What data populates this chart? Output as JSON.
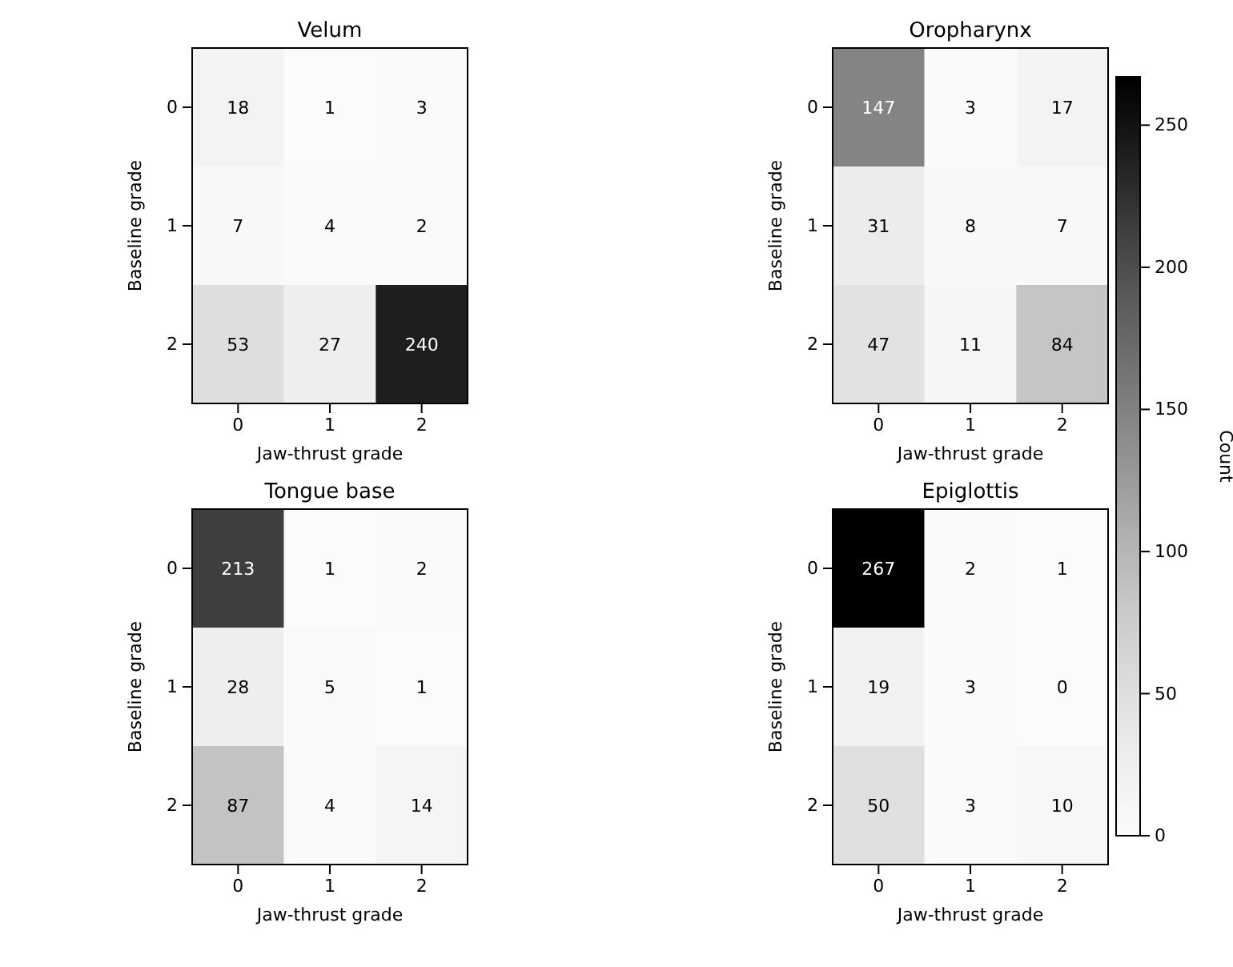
{
  "chart_data": [
    {
      "type": "heatmap",
      "title": "Velum",
      "xlabel": "Jaw-thrust grade",
      "ylabel": "Baseline grade",
      "categories": [
        "0",
        "1",
        "2"
      ],
      "y_categories": [
        "0",
        "1",
        "2"
      ],
      "data_labels": true,
      "cells": [
        [
          18,
          1,
          3
        ],
        [
          7,
          4,
          2
        ],
        [
          53,
          27,
          240
        ]
      ]
    },
    {
      "type": "heatmap",
      "title": "Oropharynx",
      "xlabel": "Jaw-thrust grade",
      "ylabel": "Baseline grade",
      "categories": [
        "0",
        "1",
        "2"
      ],
      "y_categories": [
        "0",
        "1",
        "2"
      ],
      "data_labels": true,
      "cells": [
        [
          147,
          3,
          17
        ],
        [
          31,
          8,
          7
        ],
        [
          47,
          11,
          84
        ]
      ]
    },
    {
      "type": "heatmap",
      "title": "Tongue base",
      "xlabel": "Jaw-thrust grade",
      "ylabel": "Baseline grade",
      "categories": [
        "0",
        "1",
        "2"
      ],
      "y_categories": [
        "0",
        "1",
        "2"
      ],
      "data_labels": true,
      "cells": [
        [
          213,
          1,
          2
        ],
        [
          28,
          5,
          1
        ],
        [
          87,
          4,
          14
        ]
      ]
    },
    {
      "type": "heatmap",
      "title": "Epiglottis",
      "xlabel": "Jaw-thrust grade",
      "ylabel": "Baseline grade",
      "categories": [
        "0",
        "1",
        "2"
      ],
      "y_categories": [
        "0",
        "1",
        "2"
      ],
      "data_labels": true,
      "clim": [
        0,
        267
      ],
      "clabel": "Count",
      "cticks": [
        0,
        50,
        100,
        150,
        200,
        250
      ],
      "cells": [
        [
          267,
          2,
          1
        ],
        [
          19,
          3,
          0
        ],
        [
          50,
          3,
          10
        ]
      ]
    }
  ]
}
